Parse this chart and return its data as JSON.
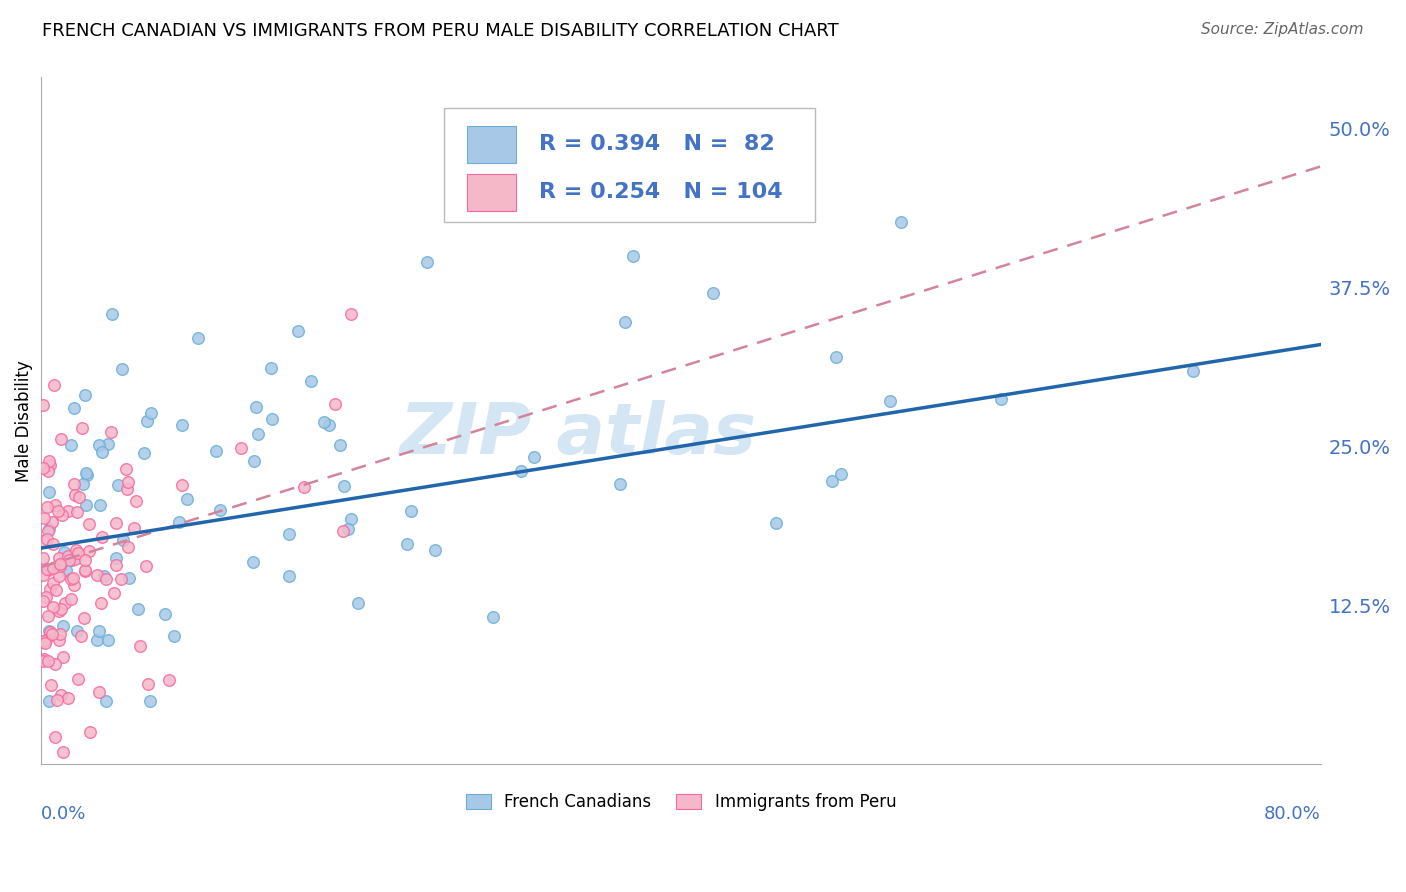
{
  "title": "FRENCH CANADIAN VS IMMIGRANTS FROM PERU MALE DISABILITY CORRELATION CHART",
  "source": "Source: ZipAtlas.com",
  "ylabel": "Male Disability",
  "ytick_labels": [
    "12.5%",
    "25.0%",
    "37.5%",
    "50.0%"
  ],
  "ytick_values": [
    0.125,
    0.25,
    0.375,
    0.5
  ],
  "xmin": 0.0,
  "xmax": 0.8,
  "ymin": 0.0,
  "ymax": 0.54,
  "blue_color": "#a8c8e8",
  "blue_edge_color": "#6baed6",
  "pink_color": "#f4b8c8",
  "pink_edge_color": "#f768a1",
  "blue_line_color": "#2166ac",
  "pink_line_color": "#d4849a",
  "grid_color": "#cccccc",
  "watermark_color": "#b8d4ec",
  "axis_label_color": "#4472c4",
  "legend_text_color": "#4472c4",
  "title_fontsize": 13,
  "tick_fontsize": 14,
  "legend_fontsize": 16
}
